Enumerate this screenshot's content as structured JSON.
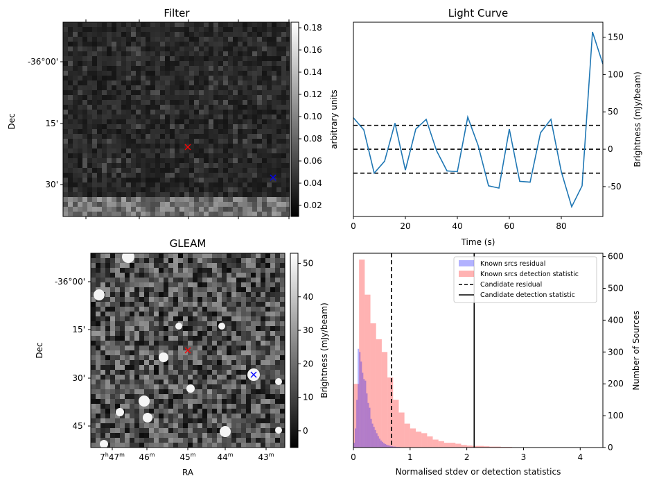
{
  "chart_data": [
    {
      "type": "heatmap",
      "title": "Filter",
      "xlabel": "",
      "ylabel": "Dec",
      "y_tick_labels": [
        "-36°00'",
        "15'",
        "30'"
      ],
      "colorbar": {
        "label": "arbitrary units",
        "range": [
          0.01,
          0.185
        ],
        "ticks": [
          0.02,
          0.04,
          0.06,
          0.08,
          0.1,
          0.12,
          0.14,
          0.16,
          0.18
        ],
        "tick_labels": [
          "0.02",
          "0.04",
          "0.06",
          "0.08",
          "0.10",
          "0.12",
          "0.14",
          "0.16",
          "0.18"
        ]
      },
      "markers": [
        {
          "name": "candidate",
          "symbol": "x",
          "color": "#ff0000"
        },
        {
          "name": "reference",
          "symbol": "x",
          "color": "#0000ff"
        }
      ]
    },
    {
      "type": "line",
      "title": "Light Curve",
      "xlabel": "Time (s)",
      "ylabel": "Brightness (mJy/beam)",
      "xlim": [
        0,
        96
      ],
      "ylim": [
        -90,
        170
      ],
      "x_ticks": [
        0,
        20,
        40,
        60,
        80
      ],
      "y_ticks": [
        -50,
        0,
        50,
        100,
        150
      ],
      "series": [
        {
          "name": "light curve",
          "color": "#1f77b4",
          "x": [
            0,
            4,
            8,
            12,
            16,
            20,
            24,
            28,
            32,
            36,
            40,
            44,
            48,
            52,
            56,
            60,
            64,
            68,
            72,
            76,
            80,
            84,
            88,
            92,
            96
          ],
          "y": [
            42,
            26,
            -32,
            -16,
            35,
            -28,
            27,
            40,
            -2,
            -29,
            -30,
            43,
            5,
            -49,
            -52,
            27,
            -43,
            -44,
            22,
            40,
            -30,
            -77,
            -49,
            157,
            114
          ]
        }
      ],
      "hlines": [
        {
          "y": 32,
          "style": "dashed",
          "color": "#000000"
        },
        {
          "y": 0,
          "style": "dashed",
          "color": "#000000"
        },
        {
          "y": -32,
          "style": "dashed",
          "color": "#000000"
        }
      ]
    },
    {
      "type": "heatmap",
      "title": "GLEAM",
      "xlabel": "RA",
      "ylabel": "Dec",
      "x_tick_labels": [
        {
          "main": "7",
          "sup1": "h",
          "main2": "47",
          "sup2": "m"
        },
        {
          "main": "46",
          "sup1": "m"
        },
        {
          "main": "45",
          "sup1": "m"
        },
        {
          "main": "44",
          "sup1": "m"
        },
        {
          "main": "43",
          "sup1": "m"
        }
      ],
      "y_tick_labels": [
        "-36°00'",
        "15'",
        "30'",
        "45'"
      ],
      "colorbar": {
        "label": "Brightness (mJy/beam)",
        "range": [
          -5,
          53
        ],
        "ticks": [
          0,
          10,
          20,
          30,
          40,
          50
        ],
        "tick_labels": [
          "0",
          "10",
          "20",
          "30",
          "40",
          "50"
        ]
      },
      "markers": [
        {
          "name": "candidate",
          "symbol": "x",
          "color": "#ff0000"
        },
        {
          "name": "reference",
          "symbol": "x",
          "color": "#0000ff"
        }
      ]
    },
    {
      "type": "bar",
      "title": "",
      "xlabel": "Normalised stdev or detection statistics",
      "ylabel": "Number of Sources",
      "xlim": [
        0,
        4.4
      ],
      "ylim": [
        0,
        610
      ],
      "x_ticks": [
        0,
        1,
        2,
        3,
        4
      ],
      "y_ticks": [
        0,
        100,
        200,
        300,
        400,
        500,
        600
      ],
      "bin_width": 0.1,
      "series": [
        {
          "name": "Known srcs residual",
          "color": "#0000ff",
          "bin_width": 0.025,
          "x_start": 0,
          "values": [
            15,
            60,
            150,
            310,
            300,
            270,
            235,
            215,
            210,
            170,
            140,
            125,
            90,
            75,
            65,
            55,
            45,
            36,
            28,
            22,
            18,
            14,
            11,
            9,
            7,
            6,
            5,
            4,
            3,
            3,
            2,
            2,
            2,
            1,
            1,
            1,
            1,
            1,
            1,
            0
          ]
        },
        {
          "name": "Known srcs detection statistic",
          "color": "#ff0000",
          "bin_width": 0.1,
          "x_start": 0,
          "values": [
            200,
            590,
            480,
            390,
            340,
            300,
            220,
            150,
            110,
            75,
            60,
            50,
            45,
            35,
            25,
            20,
            15,
            15,
            12,
            8,
            6,
            5,
            5,
            4,
            3,
            3,
            2,
            2,
            1,
            0,
            0,
            0,
            1,
            0,
            0,
            0,
            0,
            0,
            0,
            0,
            0,
            0,
            0,
            0
          ]
        }
      ],
      "vlines": [
        {
          "name": "Candidate residual",
          "x": 0.67,
          "style": "dashed",
          "color": "#000000"
        },
        {
          "name": "Candidate detection statistic",
          "x": 2.13,
          "style": "solid",
          "color": "#000000"
        }
      ],
      "legend": {
        "position": "top-right",
        "entries": [
          "Known srcs residual",
          "Known srcs detection statistic",
          "Candidate residual",
          "Candidate detection statistic"
        ]
      }
    }
  ]
}
